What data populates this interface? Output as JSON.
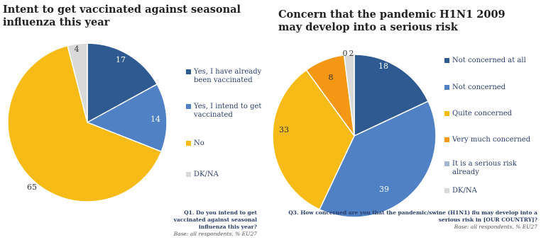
{
  "chart_data": [
    {
      "type": "pie",
      "title": "Intent to get vaccinated against seasonal influenza this year",
      "labels": [
        "Yes, I have already been vaccinated",
        "Yes, I intend to get vaccinated",
        "No",
        "DK/NA"
      ],
      "values": [
        17,
        14,
        65,
        4
      ],
      "data_labels": [
        "17",
        "14",
        "65",
        "4"
      ],
      "colors": [
        "#2f5a91",
        "#4f81c4",
        "#f6bb16",
        "#d9d9d9"
      ],
      "legend_position": "right",
      "footnote_question": "Q1. Do you intend to get vaccinated against seasonal influenza this year?",
      "footnote_base": "Base: all respondents, % EU27"
    },
    {
      "type": "pie",
      "title": "Concern that the pandemic H1N1 2009 may develop into a serious risk",
      "labels": [
        "Not concerned at all",
        "Not concerned",
        "Quite concerned",
        "Very much concerned",
        "It is a serious risk already",
        "DK/NA"
      ],
      "values": [
        18,
        39,
        33,
        8,
        0,
        2
      ],
      "data_labels": [
        "18",
        "39",
        "33",
        "8",
        "0",
        "2"
      ],
      "colors": [
        "#2f5a91",
        "#4f81c4",
        "#f6bb16",
        "#f49714",
        "#a6b8cf",
        "#d9d9d9"
      ],
      "legend_position": "right",
      "footnote_question": "Q3. How concerned are you that the pandemic/swine (H1N1) flu may develop into a serious risk in [OUR COUNTRY]?",
      "footnote_base": "Base: all respondents, % EU27"
    }
  ]
}
